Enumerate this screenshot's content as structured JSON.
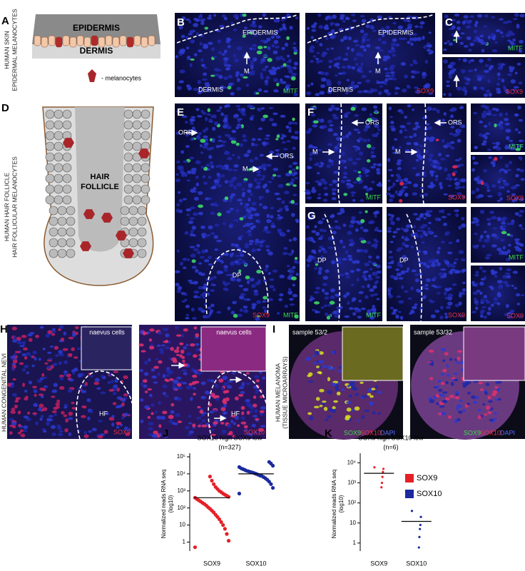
{
  "panels": {
    "A": {
      "letter": "A",
      "side": [
        "HUMAN SKIN",
        "EPIDERMAL MELANOCYTES"
      ],
      "epidermis": "EPIDERMIS",
      "dermis": "DERMIS",
      "legend": "- melanocytes"
    },
    "B": {
      "letter": "B",
      "left": {
        "layer_top": "EPIDERMIS",
        "cell": "M",
        "layer_bottom": "DERMIS",
        "stain": "MITF"
      },
      "right": {
        "layer_top": "EPIDERMIS",
        "cell": "M",
        "layer_bottom": "DERMIS",
        "stain": "SOX9"
      }
    },
    "C": {
      "letter": "C",
      "top_stain": "MITF",
      "bottom_stain": "SOX9"
    },
    "D": {
      "letter": "D",
      "side": [
        "HUMAN HAIR FOLLICLE",
        "HAIR FOLLICULAR  MELANOCYTES"
      ],
      "center": [
        "HAIR",
        "FOLLICLE"
      ]
    },
    "E": {
      "letter": "E",
      "ors_left": "ORS",
      "ors_right": "ORS",
      "cell": "M",
      "papilla": "DP",
      "stains": [
        "SOX9",
        "MITF"
      ]
    },
    "F": {
      "letter": "F",
      "left": {
        "ors": "ORS",
        "cell": "M",
        "stain": "MITF"
      },
      "right": {
        "ors": "ORS",
        "cell": "M",
        "stain": "SOX9"
      },
      "insets": [
        "MITF",
        "SOX9"
      ]
    },
    "G": {
      "letter": "G",
      "left": {
        "papilla": "DP",
        "stain": "MITF"
      },
      "right": {
        "papilla": "DP",
        "stain": "SOX9"
      },
      "insets": [
        "MITF",
        "SOX9"
      ]
    },
    "H": {
      "letter": "H",
      "side": "HUMAN CONGENITAL NEVI",
      "left": {
        "inset": "naevus cells",
        "follicle": "HF",
        "stain": "SOX9"
      },
      "right": {
        "inset": "naevus cells",
        "follicle": "HF",
        "stain": "SOX10"
      }
    },
    "I": {
      "letter": "I",
      "side": [
        "HUMAN MELANOMA",
        "(TISSUE MICROARRAYS)"
      ],
      "left": {
        "sample": "sample 53/2",
        "stains": [
          "SOX9",
          "SOX10",
          "DAPI"
        ]
      },
      "right": {
        "sample": "sample 53/32",
        "stains": [
          "SOX9",
          "SOX10",
          "DAPI"
        ]
      }
    }
  },
  "chart_data": [
    {
      "type": "strip",
      "letter": "J",
      "title": "SOX10 high SOX9 low",
      "subtitle": "(n=327)",
      "y_label": [
        "Normalized reads RNA seq",
        "(log10)"
      ],
      "categories": [
        "SOX9",
        "SOX10"
      ],
      "series": [
        {
          "color": "#e52027",
          "values": [
            0.5,
            1.2,
            3,
            6,
            10,
            15,
            22,
            30,
            40,
            55,
            70,
            90,
            110,
            140,
            170,
            200,
            240,
            280,
            330,
            400,
            450,
            520,
            600,
            700,
            850,
            1000,
            1300,
            1700,
            2500,
            4000,
            7000
          ]
        },
        {
          "color": "#1b2a9c",
          "values": [
            700,
            1500,
            2500,
            3500,
            4500,
            5500,
            6500,
            7500,
            8000,
            9000,
            10000,
            11000,
            12000,
            13000,
            14000,
            15000,
            17000,
            19000,
            21000,
            25000,
            30000,
            40000,
            50000
          ]
        }
      ],
      "medians": [
        400,
        10000
      ],
      "log_y": true,
      "ylim": [
        0.3,
        100000
      ],
      "yticks": [
        1,
        10,
        {
          "value": 100,
          "label": "10²"
        },
        {
          "value": 1000,
          "label": "10³"
        },
        {
          "value": 10000,
          "label": "10⁴"
        },
        {
          "value": 100000,
          "label": "10⁵"
        }
      ]
    },
    {
      "type": "strip",
      "letter": "K",
      "title": "SOX9 high SOX10 low",
      "subtitle": "(n=6)",
      "y_label": [
        "Normalized reads RNA seq",
        "(log10)"
      ],
      "categories": [
        "SOX9",
        "SOX10"
      ],
      "series": [
        {
          "name": "SOX9",
          "color": "#e52027",
          "values": [
            6000,
            5000,
            3500,
            2000,
            1000,
            600
          ]
        },
        {
          "name": "SOX10",
          "color": "#1b2a9c",
          "values": [
            40,
            20,
            8,
            5,
            2,
            0.6
          ]
        }
      ],
      "medians": [
        3000,
        12
      ],
      "legend": "right",
      "log_y": true,
      "ylim": [
        0.4,
        20000
      ],
      "yticks": [
        1,
        10,
        {
          "value": 100,
          "label": "10²"
        },
        {
          "value": 1000,
          "label": "10³"
        },
        {
          "value": 10000,
          "label": "10⁴"
        }
      ]
    }
  ]
}
